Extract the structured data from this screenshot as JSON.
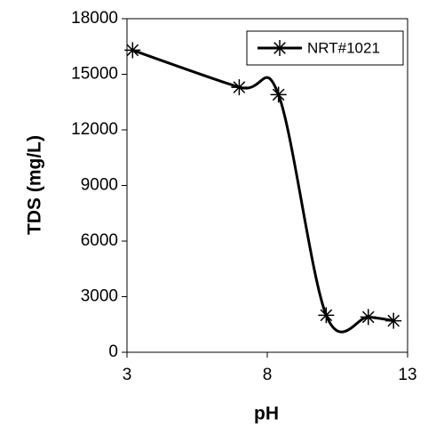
{
  "chart_data": {
    "type": "scatter",
    "x_label": "pH",
    "y_label": "TDS (mg/L)",
    "xlim": [
      3,
      13
    ],
    "xticks": [
      3,
      8,
      13
    ],
    "ylim": [
      0,
      18000
    ],
    "yticks": [
      0,
      3000,
      6000,
      9000,
      12000,
      15000,
      18000
    ],
    "legend": "upper right",
    "smooth": true,
    "series": [
      {
        "name": "NRT#1021",
        "color": "#000000",
        "x": [
          3.2,
          7,
          8.4,
          10.1,
          11.6,
          12.5
        ],
        "values": [
          16300,
          14300,
          13900,
          2000,
          1900,
          1700
        ]
      }
    ]
  }
}
